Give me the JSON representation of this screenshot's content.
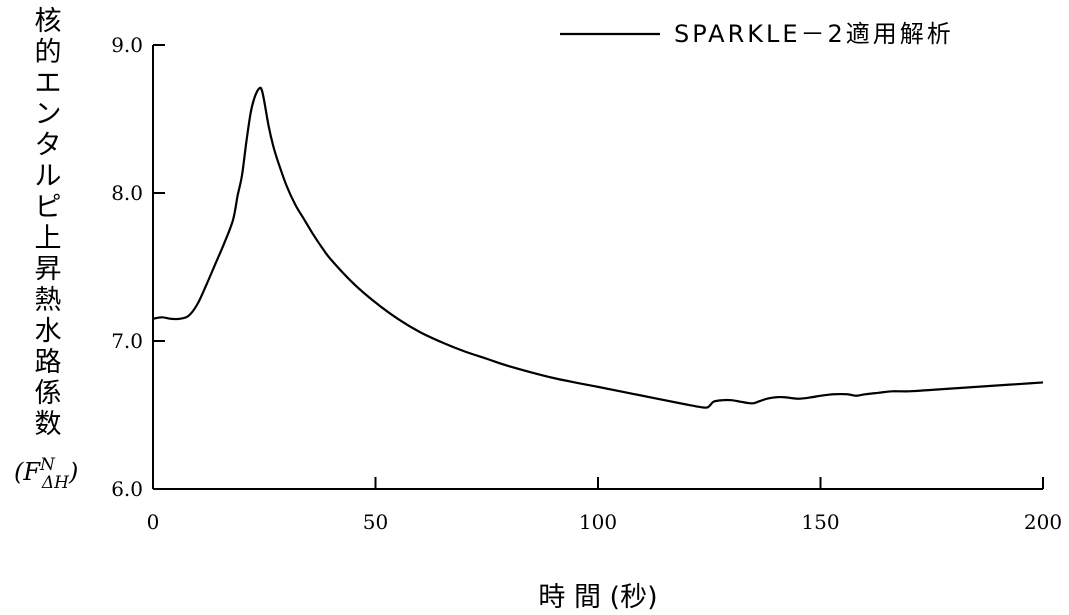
{
  "chart_data": {
    "type": "line",
    "title": "",
    "xlabel": "時 間 (秒)",
    "ylabel": "核的エンタルピ上昇熱水路係数",
    "ylabel_symbol": "(F",
    "ylabel_symbol_sup": "N",
    "ylabel_symbol_sub": "ΔH",
    "ylabel_symbol_close": ")",
    "xlim": [
      0,
      200
    ],
    "ylim": [
      6.0,
      9.0
    ],
    "xticks": [
      0,
      50,
      100,
      150,
      200
    ],
    "xtick_labels": [
      "0",
      "50",
      "100",
      "150",
      "200"
    ],
    "yticks": [
      6.0,
      7.0,
      8.0,
      9.0
    ],
    "ytick_labels": [
      "6.0",
      "7.0",
      "8.0",
      "9.0"
    ],
    "grid": false,
    "legend_position": "top-right",
    "series": [
      {
        "name": "SPARKLE－2適用解析",
        "color": "#000000",
        "x": [
          0,
          2,
          4,
          6,
          8,
          10,
          12,
          14,
          16,
          18,
          19,
          20,
          21,
          22,
          23,
          24,
          24.5,
          25,
          26,
          27,
          28,
          30,
          32,
          34,
          36,
          38,
          40,
          45,
          50,
          55,
          60,
          65,
          70,
          75,
          80,
          90,
          100,
          110,
          120,
          124,
          125,
          126,
          128,
          130,
          132,
          134,
          135,
          136,
          138,
          140,
          142,
          145,
          148,
          150,
          153,
          156,
          158,
          160,
          163,
          166,
          170,
          175,
          180,
          185,
          190,
          195,
          200
        ],
        "y": [
          7.15,
          7.16,
          7.15,
          7.15,
          7.17,
          7.25,
          7.38,
          7.52,
          7.66,
          7.82,
          7.98,
          8.12,
          8.35,
          8.55,
          8.66,
          8.71,
          8.69,
          8.62,
          8.45,
          8.32,
          8.22,
          8.05,
          7.92,
          7.82,
          7.72,
          7.63,
          7.55,
          7.39,
          7.26,
          7.15,
          7.06,
          6.99,
          6.93,
          6.88,
          6.83,
          6.75,
          6.69,
          6.63,
          6.57,
          6.55,
          6.56,
          6.59,
          6.6,
          6.6,
          6.59,
          6.58,
          6.58,
          6.59,
          6.61,
          6.62,
          6.62,
          6.61,
          6.62,
          6.63,
          6.64,
          6.64,
          6.63,
          6.64,
          6.65,
          6.66,
          6.66,
          6.67,
          6.68,
          6.69,
          6.7,
          6.71,
          6.72
        ]
      }
    ]
  }
}
